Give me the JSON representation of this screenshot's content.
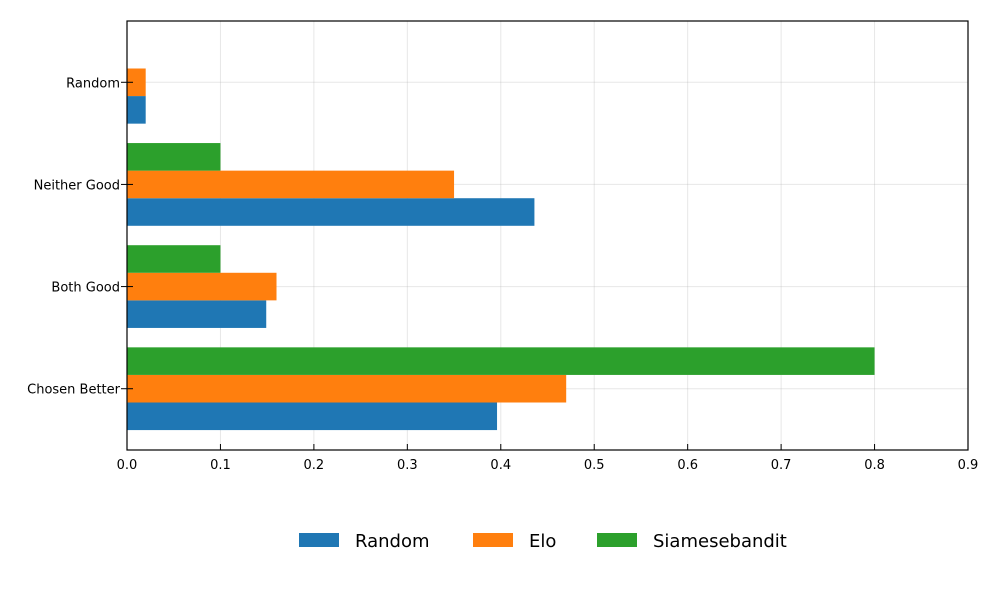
{
  "chart_data": {
    "type": "bar",
    "orientation": "horizontal",
    "categories": [
      "Chosen Better",
      "Both Good",
      "Neither Good",
      "Random"
    ],
    "series": [
      {
        "name": "Random",
        "color": "#1f77b4",
        "values": [
          0.396,
          0.149,
          0.436,
          0.02
        ]
      },
      {
        "name": "Elo",
        "color": "#ff7f0e",
        "values": [
          0.47,
          0.16,
          0.35,
          0.02
        ]
      },
      {
        "name": "Siamesebandit",
        "color": "#2ca02c",
        "values": [
          0.8,
          0.1,
          0.1,
          null
        ]
      }
    ],
    "xlim": [
      0,
      0.9
    ],
    "xticks": [
      "0.0",
      "0.1",
      "0.2",
      "0.3",
      "0.4",
      "0.5",
      "0.6",
      "0.7",
      "0.8",
      "0.9"
    ],
    "grid": true,
    "legend_position": "bottom-center",
    "title": "",
    "xlabel": "",
    "ylabel": ""
  }
}
